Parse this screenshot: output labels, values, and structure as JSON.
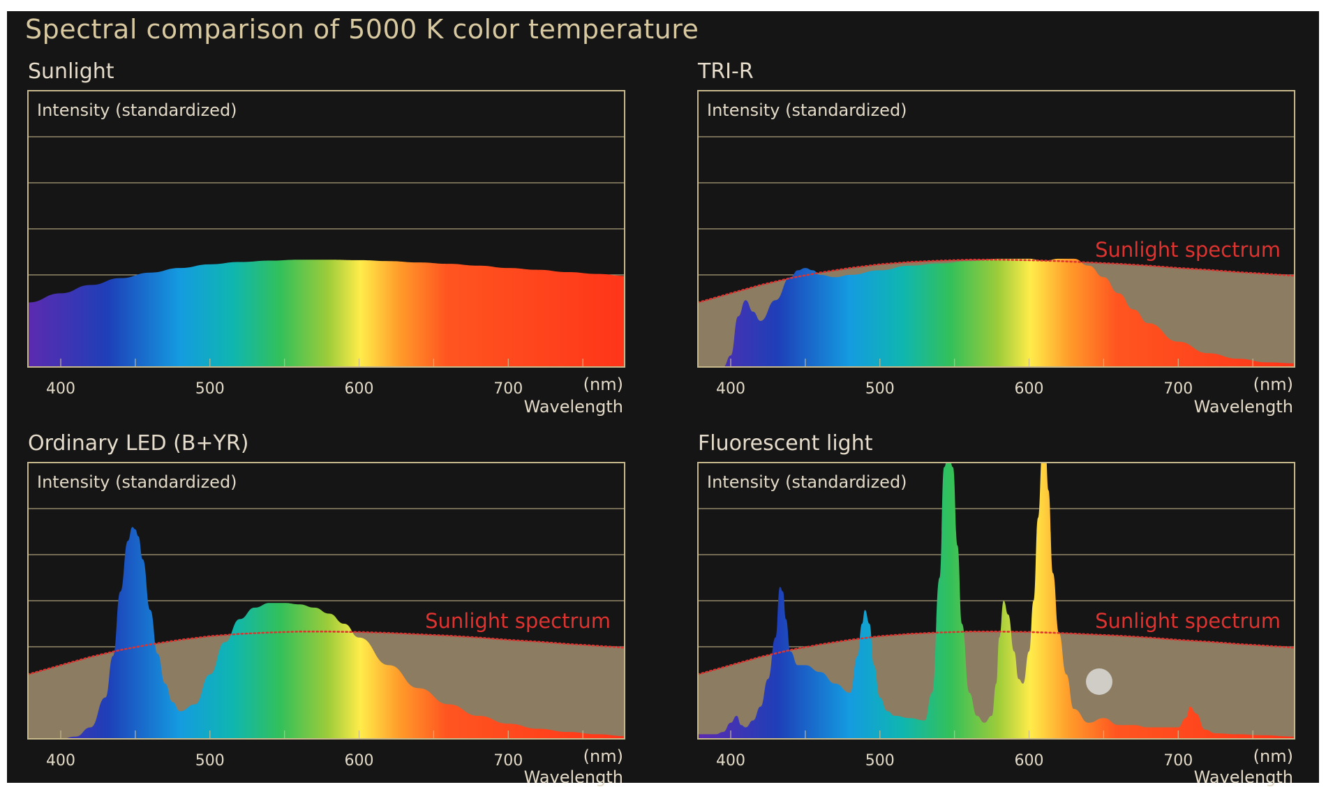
{
  "title": "Spectral comparison of 5000 K color temperature",
  "colors": {
    "background": "#151515",
    "frame": "#c8b98c",
    "title": "#d8c9a0",
    "panel_title": "#e6dccb",
    "text": "#e3dac8",
    "sunlight_fill": "#8c7c62",
    "sunlight_dotted": "#e0322f",
    "sunlight_label": "#e0322f"
  },
  "chart_data": [
    {
      "type": "area",
      "title": "Sunlight",
      "ylabel": "Intensity (standardized)",
      "xlabel": "Wavelength",
      "xunit": "(nm)",
      "xticks": [
        400,
        500,
        600,
        700
      ],
      "xlim": [
        378,
        778
      ],
      "ylim": [
        0,
        6
      ],
      "grid": true,
      "series": [
        {
          "x": [
            378,
            400,
            420,
            440,
            460,
            480,
            500,
            520,
            540,
            560,
            580,
            600,
            620,
            640,
            660,
            680,
            700,
            720,
            740,
            760,
            778
          ],
          "values": [
            1.4,
            1.6,
            1.78,
            1.93,
            2.05,
            2.15,
            2.23,
            2.28,
            2.31,
            2.33,
            2.33,
            2.32,
            2.3,
            2.27,
            2.24,
            2.2,
            2.15,
            2.11,
            2.06,
            2.02,
            1.98
          ]
        }
      ]
    },
    {
      "type": "area",
      "title": "TRI-R",
      "ylabel": "Intensity (standardized)",
      "xlabel": "Wavelength",
      "xunit": "(nm)",
      "xticks": [
        400,
        500,
        600,
        700
      ],
      "xlim": [
        378,
        778
      ],
      "ylim": [
        0,
        6
      ],
      "grid": true,
      "reference_label": "Sunlight spectrum",
      "series": [
        {
          "x": [
            378,
            395,
            400,
            405,
            410,
            415,
            420,
            430,
            440,
            445,
            450,
            455,
            460,
            470,
            480,
            500,
            520,
            540,
            560,
            580,
            600,
            610,
            620,
            630,
            640,
            650,
            660,
            670,
            680,
            700,
            720,
            740,
            760,
            778
          ],
          "values": [
            0,
            0,
            0.25,
            1.1,
            1.45,
            1.2,
            1.0,
            1.45,
            1.95,
            2.1,
            2.15,
            2.1,
            2.0,
            1.95,
            2.0,
            2.1,
            2.2,
            2.25,
            2.3,
            2.35,
            2.35,
            2.3,
            2.35,
            2.35,
            2.2,
            1.95,
            1.6,
            1.25,
            0.95,
            0.55,
            0.3,
            0.18,
            0.1,
            0.08
          ]
        }
      ]
    },
    {
      "type": "area",
      "title": "Ordinary LED (B+YR)",
      "ylabel": "Intensity (standardized)",
      "xlabel": "Wavelength",
      "xunit": "(nm)",
      "xticks": [
        400,
        500,
        600,
        700
      ],
      "xlim": [
        378,
        778
      ],
      "ylim": [
        0,
        6
      ],
      "grid": true,
      "reference_label": "Sunlight spectrum",
      "series": [
        {
          "x": [
            378,
            400,
            410,
            420,
            430,
            435,
            440,
            445,
            448,
            450,
            452,
            455,
            460,
            465,
            470,
            475,
            480,
            490,
            500,
            510,
            520,
            530,
            540,
            550,
            560,
            570,
            580,
            590,
            600,
            620,
            640,
            660,
            680,
            700,
            720,
            740,
            760,
            778
          ],
          "values": [
            0,
            0,
            0.05,
            0.25,
            0.9,
            1.8,
            3.2,
            4.3,
            4.6,
            4.55,
            4.4,
            3.9,
            2.8,
            1.85,
            1.2,
            0.8,
            0.6,
            0.75,
            1.4,
            2.1,
            2.6,
            2.85,
            2.95,
            2.95,
            2.92,
            2.85,
            2.72,
            2.5,
            2.2,
            1.6,
            1.1,
            0.75,
            0.5,
            0.33,
            0.22,
            0.15,
            0.1,
            0.06
          ]
        }
      ]
    },
    {
      "type": "area",
      "title": "Fluorescent light",
      "ylabel": "Intensity (standardized)",
      "xlabel": "Wavelength",
      "xunit": "(nm)",
      "xticks": [
        400,
        500,
        600,
        700
      ],
      "xlim": [
        378,
        778
      ],
      "ylim": [
        0,
        6
      ],
      "grid": true,
      "reference_label": "Sunlight spectrum",
      "series": [
        {
          "x": [
            378,
            390,
            395,
            400,
            404,
            407,
            410,
            415,
            420,
            425,
            430,
            433,
            435,
            437,
            440,
            445,
            450,
            460,
            470,
            480,
            485,
            488,
            490,
            493,
            496,
            500,
            505,
            510,
            520,
            530,
            535,
            540,
            543,
            546,
            549,
            552,
            555,
            560,
            565,
            570,
            575,
            578,
            580,
            583,
            586,
            590,
            593,
            596,
            600,
            603,
            606,
            609,
            611,
            613,
            616,
            620,
            625,
            630,
            640,
            650,
            660,
            670,
            680,
            690,
            700,
            705,
            708,
            712,
            718,
            725,
            740,
            755,
            778
          ],
          "values": [
            0.1,
            0.1,
            0.15,
            0.35,
            0.5,
            0.3,
            0.25,
            0.4,
            0.7,
            1.3,
            2.2,
            3.3,
            3.2,
            2.6,
            1.9,
            1.6,
            1.6,
            1.45,
            1.2,
            1.0,
            1.8,
            2.5,
            2.8,
            2.5,
            1.6,
            0.9,
            0.6,
            0.5,
            0.45,
            0.4,
            1.0,
            3.5,
            5.9,
            6.2,
            5.9,
            4.2,
            2.5,
            1.0,
            0.5,
            0.35,
            0.5,
            1.2,
            2.2,
            3.0,
            2.7,
            1.9,
            1.3,
            1.2,
            1.9,
            3.0,
            4.8,
            6.3,
            6.3,
            5.4,
            3.6,
            2.3,
            1.4,
            0.65,
            0.35,
            0.45,
            0.3,
            0.3,
            0.25,
            0.25,
            0.25,
            0.45,
            0.7,
            0.55,
            0.2,
            0.12,
            0.1,
            0.08,
            0.05
          ]
        }
      ]
    }
  ]
}
